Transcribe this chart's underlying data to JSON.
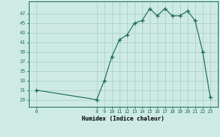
{
  "x": [
    0,
    8,
    9,
    10,
    11,
    12,
    13,
    14,
    15,
    16,
    17,
    18,
    19,
    20,
    21,
    22,
    23
  ],
  "y": [
    31,
    29,
    33,
    38,
    41.5,
    42.5,
    45,
    45.5,
    48,
    46.5,
    48,
    46.5,
    46.5,
    47.5,
    45.5,
    39,
    29.5
  ],
  "xticks": [
    0,
    8,
    9,
    10,
    11,
    12,
    13,
    14,
    15,
    16,
    17,
    18,
    19,
    20,
    21,
    22,
    23
  ],
  "yticks": [
    29,
    31,
    33,
    35,
    37,
    39,
    41,
    43,
    45,
    47
  ],
  "xlabel": "Humidex (Indice chaleur)",
  "ylim": [
    27.5,
    49.5
  ],
  "xlim": [
    -1.0,
    24.0
  ],
  "line_color": "#1a6b5a",
  "marker_color": "#1a6b5a",
  "bg_color": "#ceeae5",
  "grid_color": "#aacfc8",
  "tick_color": "#1a6b5a"
}
